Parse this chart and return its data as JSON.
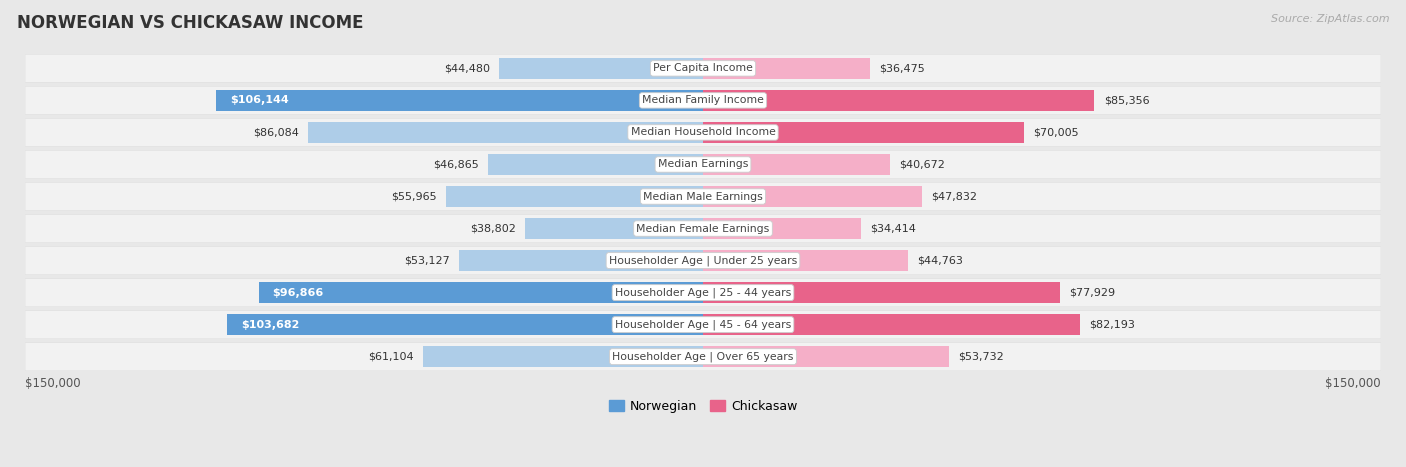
{
  "title": "NORWEGIAN VS CHICKASAW INCOME",
  "source": "Source: ZipAtlas.com",
  "categories": [
    "Per Capita Income",
    "Median Family Income",
    "Median Household Income",
    "Median Earnings",
    "Median Male Earnings",
    "Median Female Earnings",
    "Householder Age | Under 25 years",
    "Householder Age | 25 - 44 years",
    "Householder Age | 45 - 64 years",
    "Householder Age | Over 65 years"
  ],
  "norwegian_values": [
    44480,
    106144,
    86084,
    46865,
    55965,
    38802,
    53127,
    96866,
    103682,
    61104
  ],
  "chickasaw_values": [
    36475,
    85356,
    70005,
    40672,
    47832,
    34414,
    44763,
    77929,
    82193,
    53732
  ],
  "norwegian_labels": [
    "$44,480",
    "$106,144",
    "$86,084",
    "$46,865",
    "$55,965",
    "$38,802",
    "$53,127",
    "$96,866",
    "$103,682",
    "$61,104"
  ],
  "chickasaw_labels": [
    "$36,475",
    "$85,356",
    "$70,005",
    "$40,672",
    "$47,832",
    "$34,414",
    "$44,763",
    "$77,929",
    "$82,193",
    "$53,732"
  ],
  "max_value": 150000,
  "norwegian_color_light": "#aecde8",
  "norwegian_color_strong": "#5b9bd5",
  "chickasaw_color_light": "#f5afc8",
  "chickasaw_color_strong": "#e8638a",
  "fig_bg": "#e8e8e8",
  "row_bg": "#f2f2f2",
  "row_shadow": "#d8d8d8",
  "norwegian_strong_threshold": 90000,
  "chickasaw_strong_threshold": 65000,
  "x_label_left": "$150,000",
  "x_label_right": "$150,000",
  "legend_nor": "Norwegian",
  "legend_chic": "Chickasaw"
}
